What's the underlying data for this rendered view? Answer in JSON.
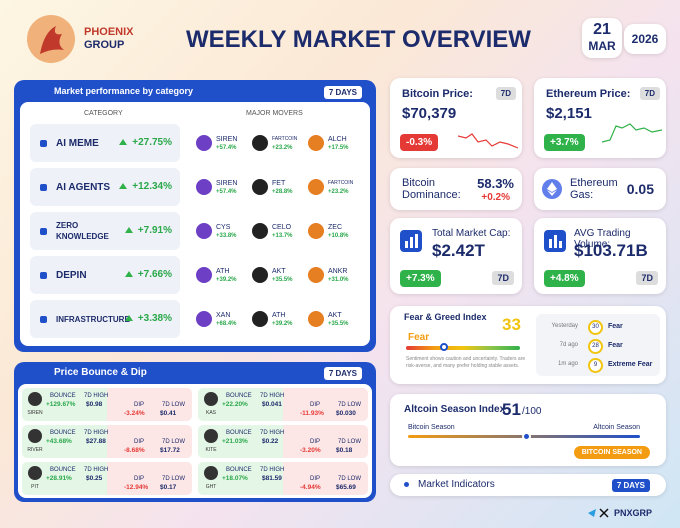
{
  "header": {
    "brand": [
      "PHOENIX",
      "GROUP"
    ],
    "title": "WEEKLY MARKET OVERVIEW",
    "day": "21",
    "month": "MAR",
    "year": "2026"
  },
  "categories": {
    "title": "Market performance by category",
    "period": "7 DAYS",
    "columns": [
      "CATEGORY",
      "MAJOR MOVERS"
    ],
    "rows": [
      {
        "name": "AI MEME",
        "change": "+27.75%",
        "movers": [
          {
            "symbol": "SIREN",
            "change": "+57.4%"
          },
          {
            "symbol": "FARTCOIN",
            "change": "+23.2%"
          },
          {
            "symbol": "ALCH",
            "change": "+17.5%"
          }
        ]
      },
      {
        "name": "AI AGENTS",
        "change": "+12.34%",
        "movers": [
          {
            "symbol": "SIREN",
            "change": "+57.4%"
          },
          {
            "symbol": "FET",
            "change": "+28.8%"
          },
          {
            "symbol": "FARTCOIN",
            "change": "+23.2%"
          }
        ]
      },
      {
        "name": "ZERO KNOWLEDGE",
        "change": "+7.91%",
        "movers": [
          {
            "symbol": "CYS",
            "change": "+33.8%"
          },
          {
            "symbol": "CELO",
            "change": "+13.7%"
          },
          {
            "symbol": "ZEC",
            "change": "+10.8%"
          }
        ]
      },
      {
        "name": "DEPIN",
        "change": "+7.66%",
        "movers": [
          {
            "symbol": "ATH",
            "change": "+39.2%"
          },
          {
            "symbol": "AKT",
            "change": "+35.5%"
          },
          {
            "symbol": "ANKR",
            "change": "+31.0%"
          }
        ]
      },
      {
        "name": "INFRASTRUCTURE",
        "change": "+3.38%",
        "movers": [
          {
            "symbol": "XAN",
            "change": "+68.4%"
          },
          {
            "symbol": "ATH",
            "change": "+39.2%"
          },
          {
            "symbol": "AKT",
            "change": "+35.5%"
          }
        ]
      }
    ]
  },
  "bounce_dip": {
    "title": "Price Bounce & Dip",
    "period": "7 DAYS",
    "labels": {
      "bounce": "BOUNCE",
      "high": "7D HIGH",
      "dip": "DIP",
      "low": "7D LOW"
    },
    "tokens": [
      {
        "symbol": "SIREN",
        "bounce": "+129.67%",
        "high": "$0.98",
        "dip": "-3.24%",
        "low": "$0.41"
      },
      {
        "symbol": "KAS",
        "bounce": "+22.20%",
        "high": "$0.041",
        "dip": "-11.93%",
        "low": "$0.030"
      },
      {
        "symbol": "RIVER",
        "bounce": "+43.68%",
        "high": "$27.88",
        "dip": "-8.68%",
        "low": "$17.72"
      },
      {
        "symbol": "KITE",
        "bounce": "+21.03%",
        "high": "$0.22",
        "dip": "-3.20%",
        "low": "$0.18"
      },
      {
        "symbol": "PIT",
        "bounce": "+28.91%",
        "high": "$0.25",
        "dip": "-12.94%",
        "low": "$0.17"
      },
      {
        "symbol": "GHT",
        "bounce": "+18.07%",
        "high": "$81.59",
        "dip": "-4.94%",
        "low": "$65.69"
      }
    ]
  },
  "bitcoin_price": {
    "label": "Bitcoin Price:",
    "value": "$70,379",
    "period": "7D",
    "change": "-0.3%"
  },
  "ethereum_price": {
    "label": "Ethereum Price:",
    "value": "$2,151",
    "period": "7D",
    "change": "+3.7%"
  },
  "bitcoin_dominance": {
    "label": "Bitcoin Dominance:",
    "value": "58.3%",
    "change": "+0.2%"
  },
  "ethereum_gas": {
    "label": "Ethereum Gas:",
    "value": "0.05"
  },
  "market_cap": {
    "label": "Total Market Cap:",
    "value": "$2.42T",
    "change": "+7.3%",
    "period": "7D"
  },
  "trading_volume": {
    "label": "AVG Trading Volume:",
    "value": "$103.71B",
    "change": "+4.8%",
    "period": "7D"
  },
  "fear_greed": {
    "title": "Fear & Greed Index",
    "status": "Fear",
    "value": 33,
    "description": "Sentiment shows caution and uncertainty. Traders are risk-averse, and many prefer holding stable assets.",
    "history": [
      {
        "when": "Yesterday",
        "value": 30,
        "status": "Fear"
      },
      {
        "when": "7d ago",
        "value": 28,
        "status": "Fear"
      },
      {
        "when": "1m ago",
        "value": 9,
        "status": "Extreme Fear"
      }
    ]
  },
  "altcoin_season": {
    "title": "Altcoin Season Index",
    "value": 51,
    "max": "/100",
    "left": "Bitcoin Season",
    "right": "Altcoin Season",
    "status": "BITCOIN SEASON"
  },
  "indicators": {
    "title": "Market Indicators",
    "period": "7 DAYS"
  },
  "footer": {
    "handle": "PNXGRP"
  }
}
